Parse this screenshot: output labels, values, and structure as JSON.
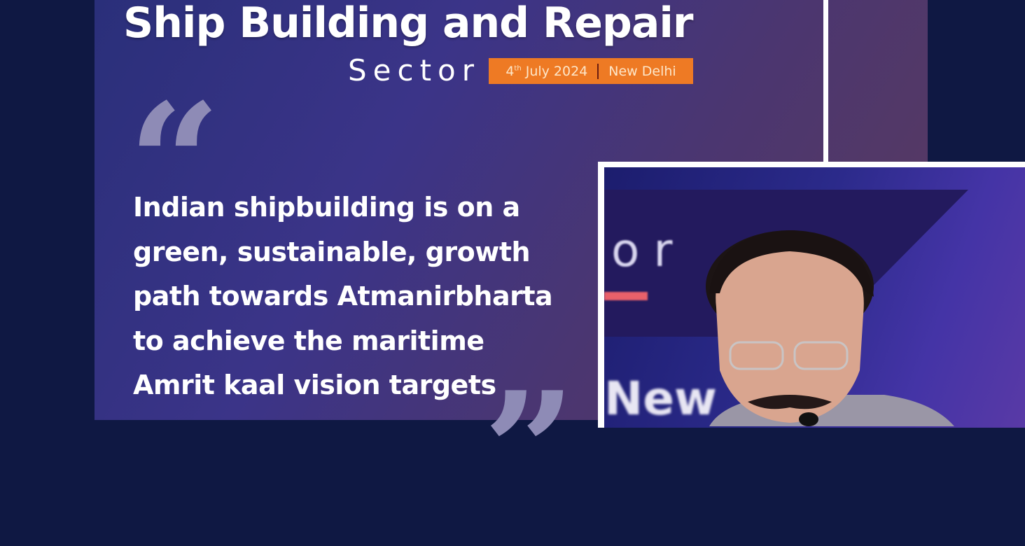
{
  "header": {
    "title": "Ship Building and Repair",
    "subtitle": "Sector",
    "date_day": "4",
    "date_suffix": "th",
    "date_rest": "July 2024",
    "location": "New Delhi"
  },
  "quote": {
    "open_mark": "“",
    "close_mark": "”",
    "lines": [
      "Indian shipbuilding is on a",
      "green, sustainable, growth",
      "path towards Atmanirbharta",
      "to achieve the maritime",
      "Amrit kaal vision targets"
    ]
  },
  "photo": {
    "backdrop_text_top": "or",
    "backdrop_text_bottom": "New"
  },
  "colors": {
    "background": "#0f1843",
    "badge": "#ee7a24",
    "quote_mark": "#8e8bb6"
  }
}
